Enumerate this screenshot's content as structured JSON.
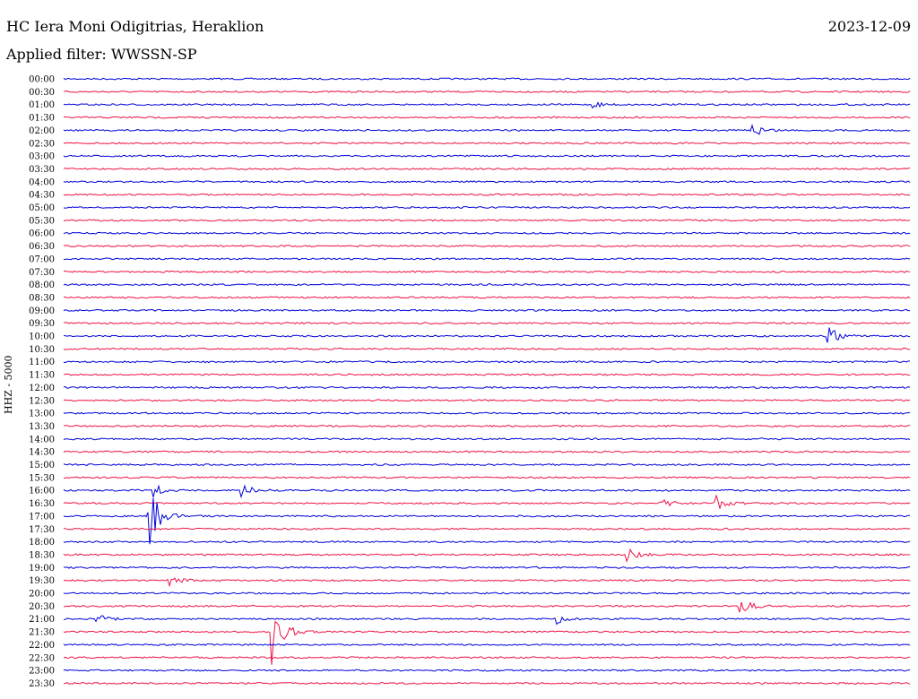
{
  "header": {
    "station": "HC Iera Moni Odigitrias, Heraklion",
    "date": "2023-12-09",
    "filter": "Applied filter: WWSSN-SP",
    "channel": "HHZ - 5000"
  },
  "colors": {
    "even_rows": "#0000dd",
    "odd_rows": "#ee1144",
    "text": "#000000"
  },
  "chart_data": {
    "type": "line",
    "y_tick_labels": [
      "00:00",
      "00:30",
      "01:00",
      "01:30",
      "02:00",
      "02:30",
      "03:00",
      "03:30",
      "04:00",
      "04:30",
      "05:00",
      "05:30",
      "06:00",
      "06:30",
      "07:00",
      "07:30",
      "08:00",
      "08:30",
      "09:00",
      "09:30",
      "10:00",
      "10:30",
      "11:00",
      "11:30",
      "12:00",
      "12:30",
      "13:00",
      "13:30",
      "14:00",
      "14:30",
      "15:00",
      "15:30",
      "16:00",
      "16:30",
      "17:00",
      "17:30",
      "18:00",
      "18:30",
      "19:00",
      "19:30",
      "20:00",
      "20:30",
      "21:00",
      "21:30",
      "22:00",
      "22:30",
      "23:00",
      "23:30"
    ],
    "trace_time_span": "30 min per row",
    "events": [
      {
        "row": "01:00",
        "at_min": 18.7,
        "amp": 4
      },
      {
        "row": "02:00",
        "at_min": 24.4,
        "amp": 9
      },
      {
        "row": "10:00",
        "at_min": 27.1,
        "amp": 11
      },
      {
        "row": "16:00",
        "at_min": 3.2,
        "amp": 7
      },
      {
        "row": "16:00",
        "at_min": 6.3,
        "amp": 9
      },
      {
        "row": "16:30",
        "at_min": 23.1,
        "amp": 8
      },
      {
        "row": "16:30",
        "at_min": 21.2,
        "amp": 6
      },
      {
        "row": "17:00",
        "at_min": 3.0,
        "amp": 45
      },
      {
        "row": "18:30",
        "at_min": 20.0,
        "amp": 7
      },
      {
        "row": "19:30",
        "at_min": 3.7,
        "amp": 6
      },
      {
        "row": "20:30",
        "at_min": 24.0,
        "amp": 9
      },
      {
        "row": "21:00",
        "at_min": 1.2,
        "amp": 5
      },
      {
        "row": "21:00",
        "at_min": 17.5,
        "amp": 5
      },
      {
        "row": "21:30",
        "at_min": 7.4,
        "amp": 42
      }
    ]
  }
}
